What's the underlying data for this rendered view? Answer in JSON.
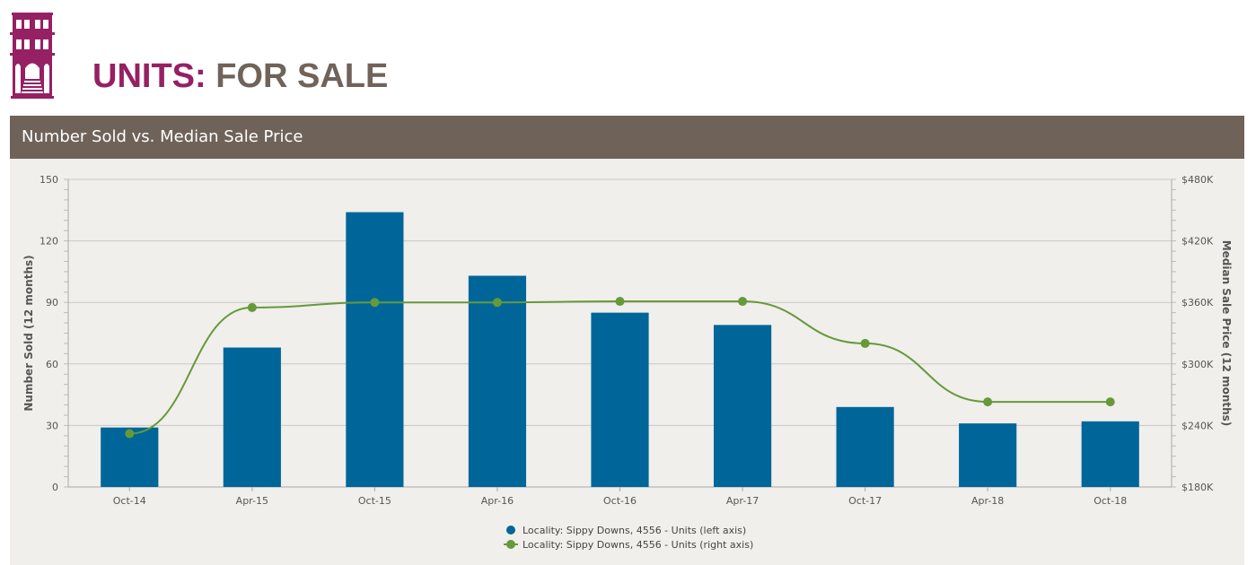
{
  "header": {
    "title_strong": "UNITS:",
    "title_rest": "FOR SALE",
    "logo_icon": "building-icon"
  },
  "colors": {
    "brand_magenta": "#962064",
    "brand_taupe": "#6f6259",
    "bar": "#006699",
    "line": "#66993a",
    "panel_bg": "#f0efeb"
  },
  "chart_data": {
    "type": "bar",
    "title": "Number Sold vs. Median Sale Price",
    "categories": [
      "Oct-14",
      "Apr-15",
      "Oct-15",
      "Apr-16",
      "Oct-16",
      "Apr-17",
      "Oct-17",
      "Apr-18",
      "Oct-18"
    ],
    "series": [
      {
        "name": "Locality: Sippy Downs, 4556 - Units (left axis)",
        "type": "bar",
        "axis": "left",
        "values": [
          29,
          68,
          134,
          103,
          85,
          79,
          39,
          31,
          32
        ]
      },
      {
        "name": "Locality: Sippy Downs, 4556 - Units (right axis)",
        "type": "line",
        "axis": "right",
        "values": [
          232000,
          355000,
          360000,
          360000,
          361000,
          361000,
          320000,
          263000,
          263000
        ]
      }
    ],
    "ylabel": "Number Sold (12 months)",
    "ylabel_right": "Median Sale Price (12 months)",
    "ylim": [
      0,
      150
    ],
    "ylim_right": [
      180000,
      480000
    ],
    "yticks": [
      0,
      30,
      60,
      90,
      120,
      150
    ],
    "yticks_right": [
      "$180K",
      "$240K",
      "$300K",
      "$360K",
      "$420K",
      "$480K"
    ],
    "grid": true,
    "legend_position": "bottom-center"
  }
}
